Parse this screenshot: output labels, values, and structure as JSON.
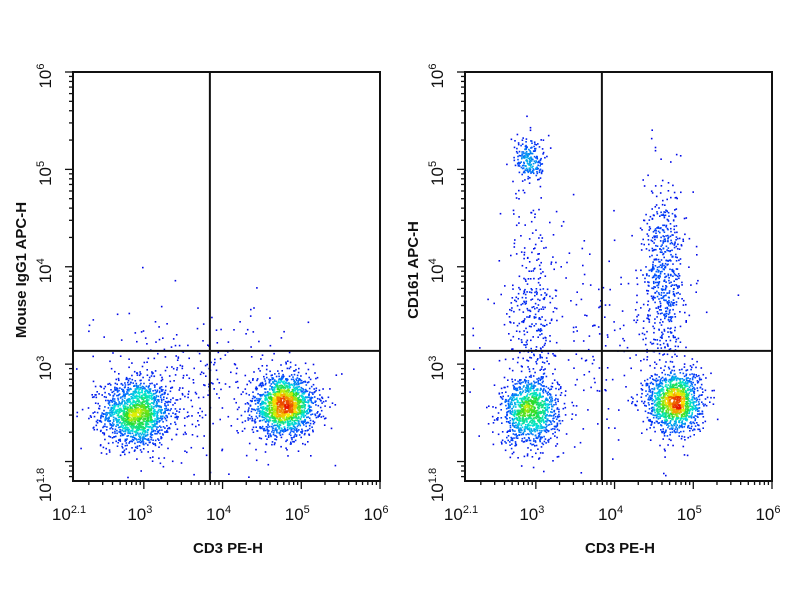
{
  "chart_data": [
    {
      "type": "scatter",
      "xlabel": "CD3 PE-H",
      "ylabel": "Mouse IgG1 APC-H",
      "x_scale": "log",
      "y_scale": "log",
      "xlim": [
        125.9,
        1000000
      ],
      "ylim": [
        63.1,
        1000000
      ],
      "x_ticks": [
        {
          "base": "10",
          "exp": "2.1",
          "value": 125.9
        },
        {
          "base": "10",
          "exp": "3",
          "value": 1000
        },
        {
          "base": "10",
          "exp": "4",
          "value": 10000
        },
        {
          "base": "10",
          "exp": "5",
          "value": 100000
        },
        {
          "base": "10",
          "exp": "6",
          "value": 1000000
        }
      ],
      "y_ticks": [
        {
          "base": "10",
          "exp": "1.8",
          "value": 63.1
        },
        {
          "base": "10",
          "exp": "3",
          "value": 1000
        },
        {
          "base": "10",
          "exp": "4",
          "value": 10000
        },
        {
          "base": "10",
          "exp": "5",
          "value": 100000
        },
        {
          "base": "10",
          "exp": "6",
          "value": 1000000
        }
      ],
      "quadrant_gate": {
        "x": 6900,
        "y": 1370
      },
      "coloring": "density (blue low → red high)",
      "populations": [
        {
          "label": "CD3-",
          "center_log10": [
            2.9,
            2.5
          ],
          "spread_log10": [
            0.22,
            0.17
          ],
          "count": 1500
        },
        {
          "label": "CD3+",
          "center_log10": [
            4.78,
            2.58
          ],
          "spread_log10": [
            0.2,
            0.15
          ],
          "count": 1700
        },
        {
          "label": "background",
          "center_log10": [
            3.6,
            2.8
          ],
          "spread_log10": [
            0.7,
            0.4
          ],
          "count": 350
        }
      ]
    },
    {
      "type": "scatter",
      "xlabel": "CD3 PE-H",
      "ylabel": "CD161 APC-H",
      "x_scale": "log",
      "y_scale": "log",
      "xlim": [
        125.9,
        1000000
      ],
      "ylim": [
        63.1,
        1000000
      ],
      "x_ticks": [
        {
          "base": "10",
          "exp": "2.1",
          "value": 125.9
        },
        {
          "base": "10",
          "exp": "3",
          "value": 1000
        },
        {
          "base": "10",
          "exp": "4",
          "value": 10000
        },
        {
          "base": "10",
          "exp": "5",
          "value": 100000
        },
        {
          "base": "10",
          "exp": "6",
          "value": 1000000
        }
      ],
      "y_ticks": [
        {
          "base": "10",
          "exp": "1.8",
          "value": 63.1
        },
        {
          "base": "10",
          "exp": "3",
          "value": 1000
        },
        {
          "base": "10",
          "exp": "4",
          "value": 10000
        },
        {
          "base": "10",
          "exp": "5",
          "value": 100000
        },
        {
          "base": "10",
          "exp": "6",
          "value": 1000000
        }
      ],
      "quadrant_gate": {
        "x": 6900,
        "y": 1370
      },
      "coloring": "density (blue low → red high)",
      "populations": [
        {
          "label": "CD3- CD161-",
          "center_log10": [
            2.92,
            2.52
          ],
          "spread_log10": [
            0.18,
            0.17
          ],
          "count": 1100
        },
        {
          "label": "CD3+ CD161-",
          "center_log10": [
            4.75,
            2.62
          ],
          "spread_log10": [
            0.17,
            0.16
          ],
          "count": 1300
        },
        {
          "label": "CD3- CD161 high",
          "center_log10": [
            2.92,
            5.1
          ],
          "spread_log10": [
            0.1,
            0.12
          ],
          "count": 220
        },
        {
          "label": "CD3+ CD161+",
          "center_log10": [
            4.62,
            3.9
          ],
          "spread_log10": [
            0.13,
            0.45
          ],
          "count": 600
        },
        {
          "label": "CD3- CD161 low",
          "center_log10": [
            2.95,
            3.6
          ],
          "spread_log10": [
            0.15,
            0.5
          ],
          "count": 300
        },
        {
          "label": "background",
          "center_log10": [
            3.8,
            3.2
          ],
          "spread_log10": [
            0.7,
            0.6
          ],
          "count": 250
        }
      ]
    }
  ]
}
